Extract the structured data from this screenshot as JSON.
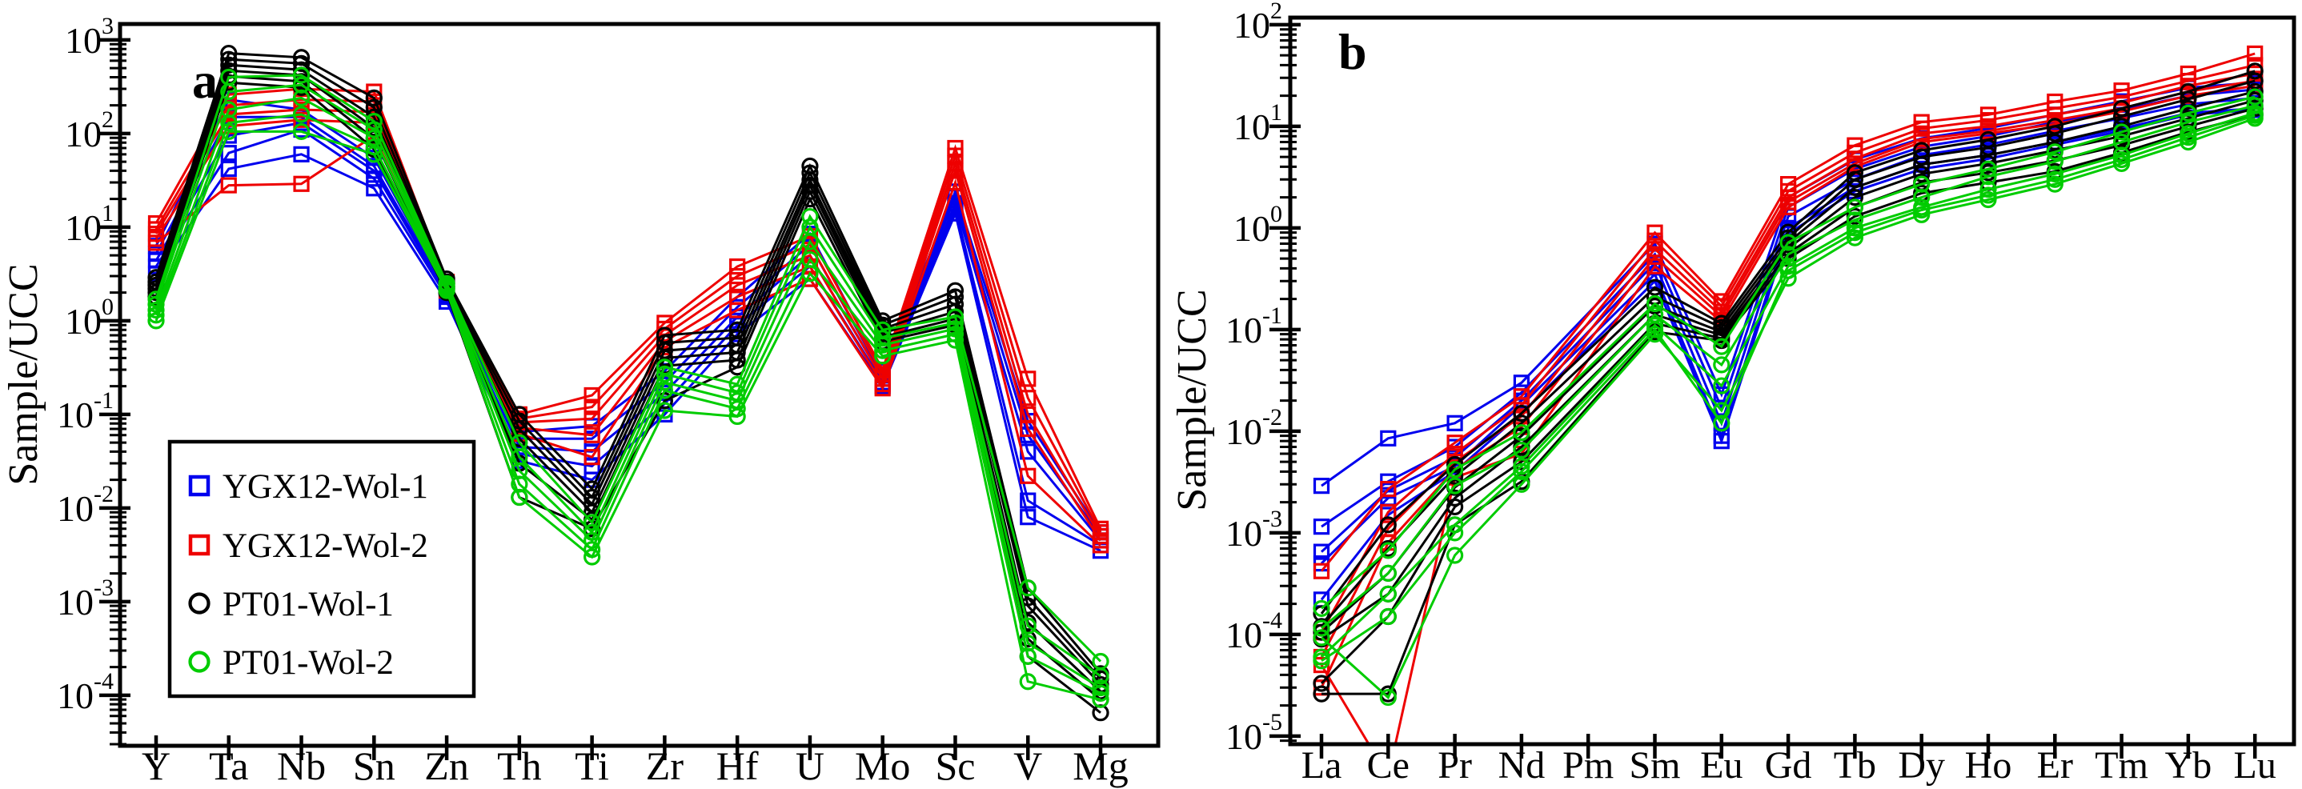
{
  "figure": {
    "background": "#ffffff",
    "ylabel": "Sample/UCC",
    "panel_labels": [
      "a",
      "b"
    ]
  },
  "legend": {
    "items": [
      {
        "label": "YGX12-Wol-1",
        "marker": "square",
        "color": "#0000ee"
      },
      {
        "label": "YGX12-Wol-2",
        "marker": "square",
        "color": "#ee0000"
      },
      {
        "label": "PT01-Wol-1",
        "marker": "circle",
        "color": "#000000"
      },
      {
        "label": "PT01-Wol-2",
        "marker": "circle",
        "color": "#00cc00"
      }
    ]
  },
  "chart_data": [
    {
      "type": "line",
      "panel_label": "a",
      "ylabel": "Sample/UCC",
      "log_y": true,
      "grid": false,
      "ylim": [
        3e-05,
        1500
      ],
      "ytick_exponents": [
        3,
        2,
        1,
        0,
        -1,
        -2,
        -3,
        -4
      ],
      "categories": [
        "Y",
        "Ta",
        "Nb",
        "Sn",
        "Zn",
        "Th",
        "Ti",
        "Zr",
        "Hf",
        "U",
        "Mo",
        "Sc",
        "V",
        "Mg"
      ],
      "series": [
        {
          "name": "YGX12-Wol-1",
          "color": "#0000ee",
          "marker": "square",
          "lines": [
            [
              6.3,
              230,
              180,
              55,
              2.1,
              0.065,
              0.075,
              0.29,
              1.8,
              8.5,
              0.29,
              24,
              0.085,
              0.0055
            ],
            [
              5.2,
              150,
              150,
              45,
              2.0,
              0.055,
              0.055,
              0.22,
              1.4,
              6.5,
              0.26,
              21,
              0.06,
              0.005
            ],
            [
              4.4,
              95,
              130,
              40,
              1.9,
              0.045,
              0.04,
              0.17,
              1.1,
              5.0,
              0.24,
              18,
              0.04,
              0.0045
            ],
            [
              3.8,
              62,
              110,
              33,
              1.8,
              0.038,
              0.028,
              0.13,
              0.9,
              3.8,
              0.22,
              16,
              0.012,
              0.004
            ],
            [
              3.2,
              42,
              60,
              26,
              1.6,
              0.032,
              0.02,
              0.1,
              0.72,
              2.8,
              0.2,
              14,
              0.008,
              0.0035
            ]
          ]
        },
        {
          "name": "YGX12-Wol-2",
          "color": "#ee0000",
          "marker": "square",
          "lines": [
            [
              11,
              260,
              300,
              280,
              2.6,
              0.1,
              0.16,
              0.95,
              3.8,
              8.0,
              0.3,
              70,
              0.24,
              0.006
            ],
            [
              9.5,
              200,
              230,
              220,
              2.4,
              0.09,
              0.12,
              0.82,
              3.0,
              6.5,
              0.27,
              58,
              0.15,
              0.0055
            ],
            [
              8.5,
              160,
              180,
              170,
              2.3,
              0.082,
              0.09,
              0.7,
              2.4,
              5.0,
              0.24,
              48,
              0.1,
              0.005
            ],
            [
              7.5,
              120,
              140,
              130,
              2.2,
              0.072,
              0.06,
              0.6,
              1.8,
              3.8,
              0.21,
              40,
              0.07,
              0.0045
            ],
            [
              6.8,
              28,
              29,
              95,
              2.1,
              0.062,
              0.035,
              0.52,
              1.3,
              2.8,
              0.19,
              30,
              0.022,
              0.004
            ]
          ]
        },
        {
          "name": "PT01-Wol-1",
          "color": "#000000",
          "marker": "circle",
          "lines": [
            [
              2.9,
              720,
              650,
              240,
              2.8,
              0.1,
              0.016,
              0.7,
              0.8,
              45,
              1.0,
              2.1,
              0.0014,
              0.00017
            ],
            [
              2.6,
              620,
              560,
              190,
              2.6,
              0.085,
              0.013,
              0.58,
              0.66,
              38,
              0.9,
              1.8,
              0.0011,
              0.00015
            ],
            [
              2.4,
              540,
              480,
              150,
              2.5,
              0.07,
              0.011,
              0.48,
              0.55,
              32,
              0.82,
              1.5,
              0.0009,
              0.00013
            ],
            [
              2.2,
              470,
              420,
              115,
              2.3,
              0.055,
              0.009,
              0.4,
              0.46,
              28,
              0.74,
              1.25,
              0.0006,
              0.00011
            ],
            [
              2.0,
              410,
              360,
              88,
              2.2,
              0.03,
              0.0075,
              0.33,
              0.38,
              24,
              0.67,
              1.05,
              0.0004,
              9e-05
            ],
            [
              1.8,
              350,
              310,
              68,
              2.0,
              0.013,
              0.006,
              0.14,
              0.32,
              20,
              0.6,
              0.9,
              0.00026,
              6.5e-05
            ]
          ]
        },
        {
          "name": "PT01-Wol-2",
          "color": "#00cc00",
          "marker": "circle",
          "lines": [
            [
              1.7,
              400,
              420,
              135,
              2.5,
              0.05,
              0.007,
              0.32,
              0.21,
              13,
              0.8,
              1.1,
              0.0014,
              0.00023
            ],
            [
              1.5,
              280,
              330,
              110,
              2.4,
              0.035,
              0.0055,
              0.27,
              0.17,
              10,
              0.65,
              0.95,
              0.00055,
              0.00016
            ],
            [
              1.3,
              180,
              240,
              90,
              2.3,
              0.025,
              0.0045,
              0.22,
              0.14,
              7.0,
              0.55,
              0.82,
              0.00036,
              0.00012
            ],
            [
              1.15,
              130,
              160,
              72,
              2.2,
              0.018,
              0.0036,
              0.18,
              0.115,
              4.5,
              0.48,
              0.72,
              0.00026,
              0.000105
            ],
            [
              1.0,
              105,
              105,
              60,
              2.1,
              0.013,
              0.003,
              0.11,
              0.095,
              3.2,
              0.42,
              0.62,
              0.00014,
              9e-05
            ]
          ]
        }
      ]
    },
    {
      "type": "line",
      "panel_label": "b",
      "ylabel": "Sample/UCC",
      "log_y": true,
      "grid": false,
      "ylim": [
        1e-05,
        100
      ],
      "ytick_exponents": [
        2,
        1,
        0,
        -1,
        -2,
        -3,
        -4,
        -5
      ],
      "categories": [
        "La",
        "Ce",
        "Pr",
        "Nd",
        "Pm",
        "Sm",
        "Eu",
        "Gd",
        "Tb",
        "Dy",
        "Ho",
        "Er",
        "Tm",
        "Yb",
        "Lu"
      ],
      "series": [
        {
          "name": "YGX12-Wol-1",
          "color": "#0000ee",
          "marker": "square",
          "lines": [
            [
              0.0029,
              0.0085,
              0.012,
              0.03,
              null,
              0.7,
              0.023,
              2.0,
              4.7,
              7.6,
              9.6,
              13,
              17.6,
              24,
              27
            ],
            [
              0.00115,
              0.0032,
              0.007,
              0.024,
              null,
              0.55,
              0.017,
              1.6,
              3.8,
              6.3,
              8.0,
              11,
              14.5,
              20,
              23
            ],
            [
              0.00065,
              0.0026,
              0.0055,
              0.02,
              null,
              0.45,
              0.012,
              1.3,
              3.0,
              5.2,
              6.6,
              9.0,
              12,
              16.5,
              19
            ],
            [
              0.0005,
              0.0022,
              0.0045,
              0.018,
              null,
              0.35,
              0.009,
              1.0,
              2.5,
              4.2,
              5.2,
              7.0,
              9.5,
              13.5,
              15
            ],
            [
              0.00022,
              0.0015,
              0.004,
              0.015,
              null,
              0.3,
              0.008,
              0.88,
              2.3,
              3.8,
              4.8,
              6.6,
              9.0,
              13,
              14.5
            ]
          ]
        },
        {
          "name": "YGX12-Wol-2",
          "color": "#ee0000",
          "marker": "square",
          "lines": [
            [
              0.00042,
              0.0027,
              0.0077,
              0.022,
              null,
              0.9,
              0.19,
              2.7,
              6.5,
              11,
              13,
              17.5,
              22.5,
              33,
              52
            ],
            [
              0.000105,
              0.0016,
              0.006,
              0.018,
              null,
              0.75,
              0.17,
              2.3,
              5.5,
              9.5,
              11.5,
              15,
              19.5,
              28,
              40
            ],
            [
              6e-05,
              0.0011,
              0.005,
              0.014,
              null,
              0.62,
              0.15,
              2.0,
              4.8,
              8.5,
              10,
              13,
              17,
              25,
              33
            ],
            [
              3e-05,
              0.0008,
              0.0042,
              0.011,
              null,
              0.52,
              0.135,
              1.8,
              4.3,
              7.5,
              9.0,
              11.5,
              15,
              22,
              28
            ],
            [
              5e-05,
              4e-06,
              0.0035,
              0.006,
              null,
              0.42,
              0.12,
              1.6,
              4.0,
              7.0,
              8.5,
              10.5,
              14,
              20,
              25
            ]
          ]
        },
        {
          "name": "PT01-Wol-1",
          "color": "#000000",
          "marker": "circle",
          "lines": [
            [
              0.00016,
              0.0012,
              0.0047,
              0.015,
              null,
              0.26,
              0.115,
              0.91,
              3.5,
              5.8,
              7.4,
              10,
              15,
              22,
              35
            ],
            [
              0.00012,
              0.0007,
              0.0036,
              0.012,
              null,
              0.21,
              0.105,
              0.8,
              3.0,
              5.0,
              6.2,
              8.5,
              12.5,
              18.5,
              28
            ],
            [
              0.000105,
              0.0004,
              0.0028,
              0.009,
              null,
              0.17,
              0.095,
              0.72,
              2.5,
              4.2,
              5.2,
              7.0,
              10,
              15,
              22
            ],
            [
              9e-05,
              0.00025,
              0.0022,
              0.007,
              null,
              0.14,
              0.088,
              0.63,
              2.0,
              3.4,
              4.3,
              5.8,
              8.0,
              12,
              18
            ],
            [
              3.3e-05,
              0.00015,
              0.0018,
              0.005,
              null,
              0.115,
              0.082,
              0.56,
              1.6,
              2.8,
              3.5,
              4.6,
              6.5,
              10,
              15
            ],
            [
              2.6e-05,
              2.6e-05,
              0.0012,
              0.0032,
              null,
              0.095,
              0.078,
              0.5,
              1.3,
              2.2,
              2.8,
              3.6,
              5.5,
              8.8,
              13
            ]
          ]
        },
        {
          "name": "PT01-Wol-2",
          "color": "#00cc00",
          "marker": "circle",
          "lines": [
            [
              0.00018,
              0.00067,
              0.0042,
              0.0097,
              null,
              0.18,
              0.068,
              0.72,
              1.6,
              2.7,
              3.8,
              5.6,
              8.8,
              13.5,
              19.5
            ],
            [
              0.000115,
              0.0004,
              0.0029,
              0.0065,
              null,
              0.14,
              0.045,
              0.55,
              1.2,
              2.0,
              3.2,
              4.5,
              7.0,
              11,
              16
            ],
            [
              6e-05,
              0.00025,
              0.0012,
              0.0045,
              null,
              0.11,
              0.028,
              0.42,
              1.0,
              1.6,
              2.4,
              3.4,
              5.2,
              8.5,
              13.5
            ],
            [
              9.3e-05,
              2.4e-05,
              0.0006,
              0.003,
              null,
              0.09,
              0.016,
              0.32,
              0.8,
              1.35,
              1.9,
              2.7,
              4.3,
              7.0,
              12
            ],
            [
              5.5e-05,
              0.00015,
              0.001,
              0.004,
              null,
              0.1,
              0.012,
              0.38,
              0.9,
              1.5,
              2.1,
              3.0,
              4.7,
              7.8,
              12.8
            ]
          ]
        }
      ]
    }
  ]
}
